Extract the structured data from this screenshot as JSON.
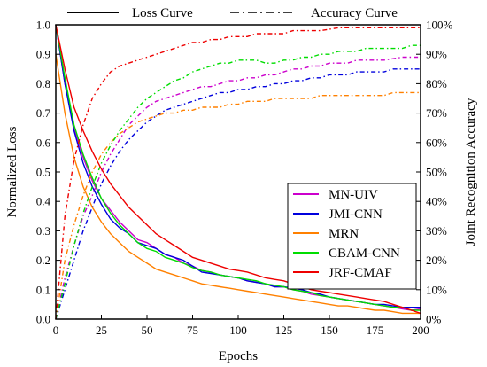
{
  "chart_data": {
    "type": "line",
    "xlabel": "Epochs",
    "ylabel": "Normalized Loss",
    "y2label": "Joint Recognition Accuracy",
    "xlim": [
      0,
      200
    ],
    "ylim": [
      0,
      1.0
    ],
    "y2lim": [
      0,
      100
    ],
    "xticks": [
      "0",
      "25",
      "50",
      "75",
      "100",
      "125",
      "150",
      "175",
      "200"
    ],
    "yticks": [
      "0.0",
      "0.1",
      "0.2",
      "0.3",
      "0.4",
      "0.5",
      "0.6",
      "0.7",
      "0.8",
      "0.9",
      "1.0"
    ],
    "y2ticks": [
      "0%",
      "10%",
      "20%",
      "30%",
      "40%",
      "50%",
      "60%",
      "70%",
      "80%",
      "90%",
      "100%"
    ],
    "grid": false,
    "legend_top": {
      "placement": "top",
      "items": [
        {
          "label": "Loss Curve",
          "style": "solid"
        },
        {
          "label": "Accuracy Curve",
          "style": "dashdot"
        }
      ]
    },
    "legend_position": "right-middle",
    "x": [
      0,
      5,
      10,
      15,
      20,
      25,
      30,
      35,
      40,
      45,
      50,
      55,
      60,
      65,
      70,
      75,
      80,
      85,
      90,
      95,
      100,
      105,
      110,
      115,
      120,
      125,
      130,
      135,
      140,
      145,
      150,
      155,
      160,
      165,
      170,
      175,
      180,
      185,
      190,
      195,
      200
    ],
    "series": [
      {
        "name": "MN-UIV",
        "color": "#cc00cc",
        "loss": [
          1.0,
          0.8,
          0.65,
          0.55,
          0.47,
          0.41,
          0.37,
          0.33,
          0.3,
          0.27,
          0.26,
          0.24,
          0.22,
          0.21,
          0.19,
          0.18,
          0.165,
          0.16,
          0.15,
          0.145,
          0.14,
          0.13,
          0.125,
          0.12,
          0.11,
          0.11,
          0.1,
          0.095,
          0.085,
          0.08,
          0.075,
          0.07,
          0.065,
          0.06,
          0.055,
          0.05,
          0.045,
          0.04,
          0.035,
          0.03,
          0.035
        ],
        "accuracy": [
          0,
          14,
          25,
          35,
          42,
          50,
          56,
          61,
          66,
          69,
          72,
          74,
          75,
          76,
          77,
          78,
          79,
          79,
          80,
          81,
          81,
          82,
          82,
          83,
          83,
          84,
          85,
          85,
          86,
          86,
          87,
          87,
          87,
          88,
          88,
          88,
          88,
          88.5,
          89,
          89,
          89
        ]
      },
      {
        "name": "JMI-CNN",
        "color": "#0000dd",
        "loss": [
          1.0,
          0.8,
          0.64,
          0.53,
          0.45,
          0.39,
          0.34,
          0.31,
          0.29,
          0.26,
          0.25,
          0.24,
          0.22,
          0.21,
          0.2,
          0.18,
          0.16,
          0.155,
          0.15,
          0.145,
          0.14,
          0.13,
          0.125,
          0.12,
          0.11,
          0.11,
          0.105,
          0.1,
          0.09,
          0.085,
          0.075,
          0.07,
          0.065,
          0.06,
          0.055,
          0.05,
          0.05,
          0.045,
          0.04,
          0.04,
          0.04
        ],
        "accuracy": [
          0,
          10,
          20,
          30,
          38,
          46,
          52,
          57,
          61,
          64,
          67,
          69,
          71,
          72,
          73,
          74,
          75,
          76,
          77,
          77,
          78,
          78,
          79,
          79,
          80,
          80,
          81,
          81,
          82,
          82,
          83,
          83,
          83,
          84,
          84,
          84,
          84,
          85,
          85,
          85,
          85
        ]
      },
      {
        "name": "MRN",
        "color": "#ff8000",
        "loss": [
          0.9,
          0.7,
          0.55,
          0.45,
          0.38,
          0.33,
          0.29,
          0.26,
          0.23,
          0.21,
          0.19,
          0.17,
          0.16,
          0.15,
          0.14,
          0.13,
          0.12,
          0.115,
          0.11,
          0.105,
          0.1,
          0.095,
          0.09,
          0.085,
          0.08,
          0.075,
          0.07,
          0.065,
          0.06,
          0.055,
          0.05,
          0.045,
          0.045,
          0.04,
          0.035,
          0.03,
          0.03,
          0.025,
          0.02,
          0.02,
          0.02
        ],
        "accuracy": [
          0,
          20,
          32,
          42,
          50,
          56,
          60,
          63,
          65,
          67,
          68,
          69,
          70,
          70,
          71,
          71,
          72,
          72,
          72,
          73,
          73,
          74,
          74,
          74,
          75,
          75,
          75,
          75,
          75,
          76,
          76,
          76,
          76,
          76,
          76,
          76,
          76,
          77,
          77,
          77,
          77
        ]
      },
      {
        "name": "CBAM-CNN",
        "color": "#00dd00",
        "loss": [
          1.0,
          0.82,
          0.66,
          0.56,
          0.48,
          0.41,
          0.36,
          0.32,
          0.29,
          0.26,
          0.24,
          0.23,
          0.21,
          0.2,
          0.19,
          0.175,
          0.165,
          0.16,
          0.15,
          0.145,
          0.14,
          0.135,
          0.13,
          0.12,
          0.115,
          0.11,
          0.1,
          0.095,
          0.09,
          0.08,
          0.075,
          0.07,
          0.065,
          0.06,
          0.055,
          0.05,
          0.045,
          0.04,
          0.04,
          0.03,
          0.03
        ],
        "accuracy": [
          0,
          12,
          25,
          36,
          45,
          53,
          59,
          64,
          68,
          72,
          75,
          77,
          79,
          81,
          82,
          84,
          85,
          86,
          87,
          87,
          88,
          88,
          88,
          87,
          87,
          88,
          88,
          89,
          89,
          90,
          90,
          91,
          91,
          91,
          92,
          92,
          92,
          92,
          92,
          93,
          93
        ]
      },
      {
        "name": "JRF-CMAF",
        "color": "#ee0000",
        "loss": [
          1.0,
          0.85,
          0.72,
          0.64,
          0.57,
          0.51,
          0.46,
          0.42,
          0.38,
          0.35,
          0.32,
          0.29,
          0.27,
          0.25,
          0.23,
          0.21,
          0.2,
          0.19,
          0.18,
          0.17,
          0.165,
          0.16,
          0.15,
          0.14,
          0.135,
          0.13,
          0.12,
          0.11,
          0.1,
          0.095,
          0.09,
          0.085,
          0.08,
          0.075,
          0.07,
          0.065,
          0.06,
          0.05,
          0.04,
          0.03,
          0.02
        ],
        "accuracy": [
          0,
          35,
          54,
          66,
          75,
          80,
          84,
          86,
          87,
          88,
          89,
          90,
          91,
          92,
          93,
          94,
          94,
          95,
          95,
          96,
          96,
          96,
          97,
          97,
          97,
          97,
          98,
          98,
          98,
          98,
          98.5,
          99,
          99,
          99,
          99,
          99,
          99,
          99,
          99,
          99,
          99
        ]
      }
    ]
  }
}
